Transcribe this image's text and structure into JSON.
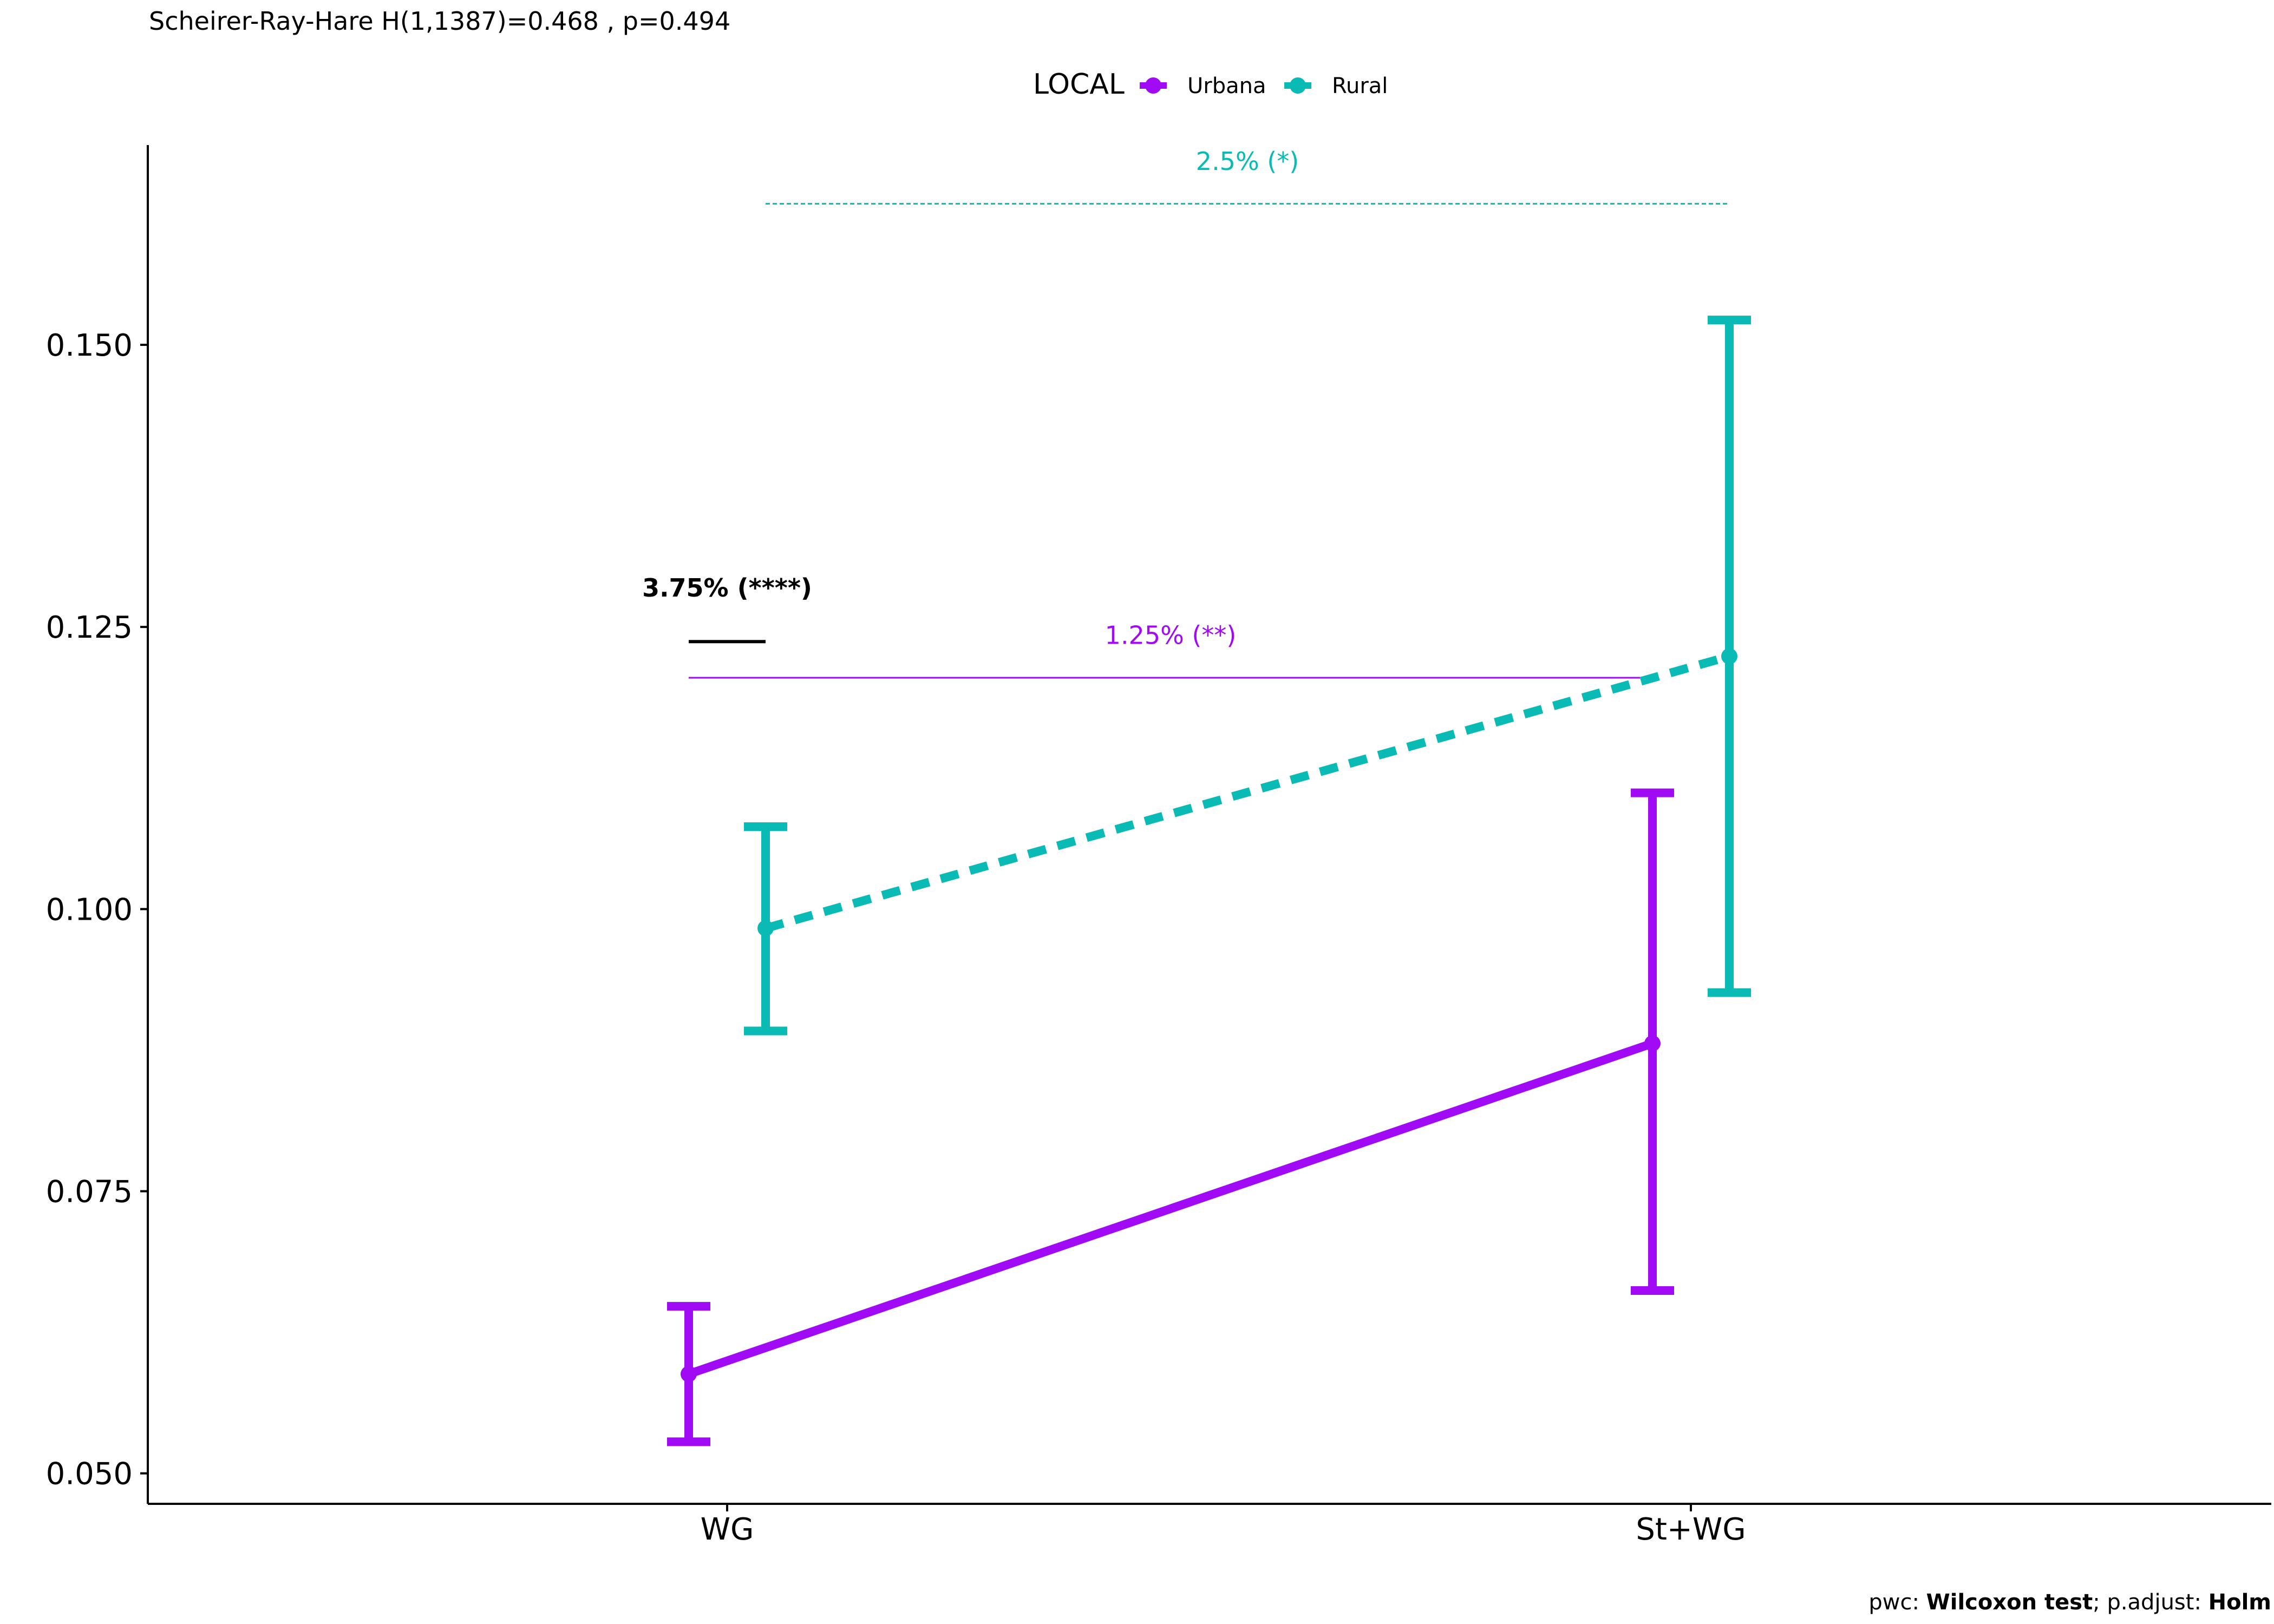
{
  "chart_data": {
    "type": "line",
    "subtitle": "Scheirer-Ray-Hare H(1,1387)=0.468 , p=0.494",
    "legend": {
      "title": "LOCAL",
      "position": "top",
      "entries": [
        "Urbana",
        "Rural"
      ]
    },
    "categories": [
      "WG",
      "St+WG"
    ],
    "xlabel": "",
    "ylabel": "",
    "ylim": [
      0.0473,
      0.1677
    ],
    "yticks": [
      0.05,
      0.075,
      0.1,
      0.125,
      0.15
    ],
    "ytick_labels": [
      "0.050",
      "0.075",
      "0.100",
      "0.125",
      "0.150"
    ],
    "grid": false,
    "series": [
      {
        "name": "Urbana",
        "color": "#A10AF5",
        "line_style": "solid",
        "values": [
          0.0588,
          0.0881
        ],
        "error_low": [
          0.0528,
          0.0662
        ],
        "error_high": [
          0.0648,
          0.1103
        ]
      },
      {
        "name": "Rural",
        "color": "#0ABAB5",
        "line_style": "dashed",
        "values": [
          0.0983,
          0.1224
        ],
        "error_low": [
          0.0892,
          0.0926
        ],
        "error_high": [
          0.1073,
          0.1522
        ]
      }
    ],
    "annotations": [
      {
        "label": "3.75% (****)",
        "color": "#000000",
        "bold": true,
        "y_line": 0.1237,
        "y_text": 0.1277,
        "x_from": 0,
        "x_to": 0,
        "span": "within-WG"
      },
      {
        "label": "1.25% (**)",
        "color": "#A10AF5",
        "bold": false,
        "y_line": 0.1205,
        "y_text": 0.1235,
        "x_from": 0,
        "x_to": 1,
        "series": "Urbana"
      },
      {
        "label": "2.5% (*)",
        "color": "#0ABAB5",
        "bold": false,
        "y_line": 0.1625,
        "y_text": 0.1655,
        "x_from": 0,
        "x_to": 1,
        "series": "Rural"
      }
    ],
    "caption": {
      "prefix": "pwc: ",
      "test": "Wilcoxon test",
      "middle": "; p.adjust: ",
      "method": "Holm"
    }
  }
}
